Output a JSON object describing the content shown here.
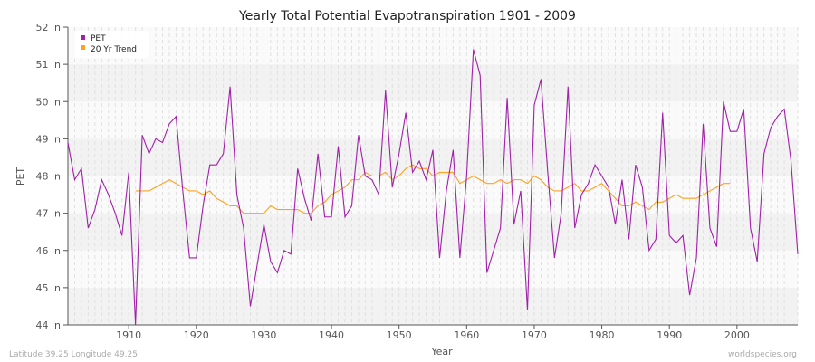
{
  "chart_data": {
    "type": "line",
    "title": "Yearly Total Potential Evapotranspiration 1901 - 2009",
    "xlabel": "Year",
    "ylabel": "PET",
    "xlim": [
      1901,
      2009
    ],
    "ylim": [
      44,
      52
    ],
    "y_ticks": [
      "44 in",
      "45 in",
      "46 in",
      "47 in",
      "48 in",
      "49 in",
      "50 in",
      "51 in",
      "52 in"
    ],
    "x_ticks": [
      "1910",
      "1920",
      "1930",
      "1940",
      "1950",
      "1960",
      "1970",
      "1980",
      "1990",
      "2000"
    ],
    "grid": true,
    "legend_position": "top-left",
    "series": [
      {
        "name": "PET",
        "color": "#a020a8",
        "start_year": 1901,
        "values": [
          48.9,
          47.9,
          48.2,
          46.6,
          47.1,
          47.9,
          47.5,
          47.0,
          46.4,
          48.1,
          44.0,
          49.1,
          48.6,
          49.0,
          48.9,
          49.4,
          49.6,
          47.6,
          45.8,
          45.8,
          47.2,
          48.3,
          48.3,
          48.6,
          50.4,
          47.5,
          46.6,
          44.5,
          45.6,
          46.7,
          45.7,
          45.4,
          46.0,
          45.9,
          48.2,
          47.4,
          46.8,
          48.6,
          46.9,
          46.9,
          48.8,
          46.9,
          47.2,
          49.1,
          48.0,
          47.9,
          47.5,
          50.3,
          47.7,
          48.6,
          49.7,
          48.1,
          48.4,
          47.9,
          48.7,
          45.8,
          47.6,
          48.7,
          45.8,
          48.0,
          51.4,
          50.7,
          45.4,
          46.0,
          46.6,
          50.1,
          46.7,
          47.6,
          44.4,
          49.9,
          50.6,
          48.1,
          45.8,
          47.0,
          50.4,
          46.6,
          47.5,
          47.8,
          48.3,
          48.0,
          47.7,
          46.7,
          47.9,
          46.3,
          48.3,
          47.7,
          46.0,
          46.3,
          49.7,
          46.4,
          46.2,
          46.4,
          44.8,
          45.8,
          49.4,
          46.6,
          46.1,
          50.0,
          49.2,
          49.2,
          49.8,
          46.6,
          45.7,
          48.6,
          49.3,
          49.6,
          49.8,
          48.4,
          45.9
        ]
      },
      {
        "name": "20 Yr Trend",
        "color": "#ffa020",
        "start_year": 1911,
        "values": [
          47.6,
          47.6,
          47.6,
          47.7,
          47.8,
          47.9,
          47.8,
          47.7,
          47.6,
          47.6,
          47.5,
          47.6,
          47.4,
          47.3,
          47.2,
          47.2,
          47.0,
          47.0,
          47.0,
          47.0,
          47.2,
          47.1,
          47.1,
          47.1,
          47.1,
          47.0,
          47.0,
          47.2,
          47.3,
          47.5,
          47.6,
          47.7,
          47.9,
          47.9,
          48.1,
          48.0,
          48.0,
          48.1,
          47.9,
          48.0,
          48.2,
          48.3,
          48.2,
          48.2,
          48.0,
          48.1,
          48.1,
          48.1,
          47.8,
          47.9,
          48.0,
          47.9,
          47.8,
          47.8,
          47.9,
          47.8,
          47.9,
          47.9,
          47.8,
          48.0,
          47.9,
          47.7,
          47.6,
          47.6,
          47.7,
          47.8,
          47.6,
          47.6,
          47.7,
          47.8,
          47.6,
          47.4,
          47.2,
          47.2,
          47.3,
          47.2,
          47.1,
          47.3,
          47.3,
          47.4,
          47.5,
          47.4,
          47.4,
          47.4,
          47.5,
          47.6,
          47.7,
          47.8,
          47.8
        ]
      }
    ]
  },
  "footer": {
    "left": "Latitude 39.25 Longitude 49.25",
    "right": "worldspecies.org"
  }
}
